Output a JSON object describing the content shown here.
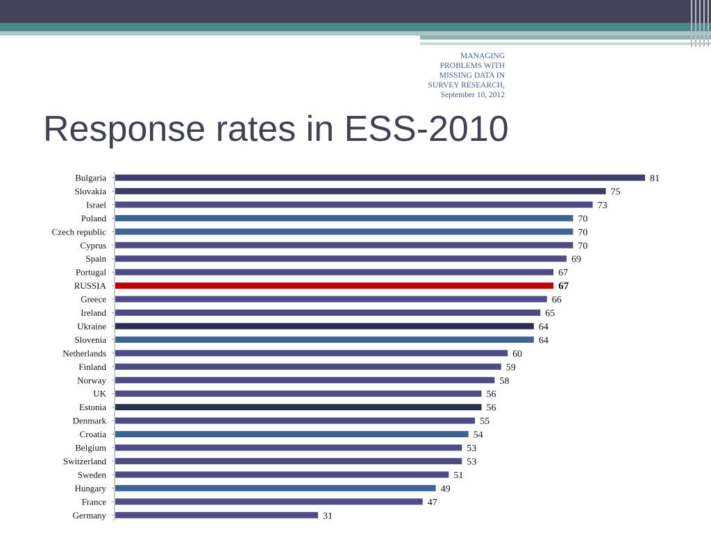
{
  "header": {
    "subtitle_lines": [
      "MANAGING",
      "PROBLEMS WITH",
      "MISSING DATA IN",
      "SURVEY RESEARCH,",
      "September 10, 2012"
    ]
  },
  "slide": {
    "title": "Response rates in ESS-2010"
  },
  "colors": {
    "bar_default": "#4e4b85",
    "bar_dark": "#2f3a5c",
    "bar_blue": "#3c6495",
    "bar_highlight": "#c00000"
  },
  "chart_data": {
    "type": "bar",
    "orientation": "horizontal",
    "categories": [
      "Bulgaria",
      "Slovakia",
      "Israel",
      "Poland",
      "Czech republic",
      "Cyprus",
      "Spain",
      "Portugal",
      "RUSSIA",
      "Greece",
      "Ireland",
      "Ukraine",
      "Slovenia",
      "Netherlands",
      "Finland",
      "Norway",
      "UK",
      "Estonia",
      "Denmark",
      "Croatia",
      "Belgium",
      "Switzerland",
      "Sweden",
      "Hungary",
      "France",
      "Germany"
    ],
    "values": [
      81,
      75,
      73,
      70,
      70,
      70,
      69,
      67,
      67,
      66,
      65,
      64,
      64,
      60,
      59,
      58,
      56,
      56,
      55,
      54,
      53,
      53,
      51,
      49,
      47,
      31
    ],
    "value_labels": [
      "81",
      "75",
      "73",
      "70",
      "70",
      "70",
      "69",
      "67",
      "67",
      "66",
      "65",
      "64",
      "64",
      "60",
      "59",
      "58",
      "56",
      "56",
      "55",
      "54",
      "53",
      "53",
      "51",
      "49",
      "47",
      "31"
    ],
    "bar_colors": [
      "#3e3d6b",
      "#3e3d6b",
      "#4e4b85",
      "#3c6495",
      "#3c6495",
      "#4e4b85",
      "#4e4b85",
      "#4e4b85",
      "#c00000",
      "#4e4b85",
      "#4e4b85",
      "#2b2e4e",
      "#3c6495",
      "#4e4b85",
      "#4e4b85",
      "#4e4b85",
      "#4e4b85",
      "#2b2e4e",
      "#4e4b85",
      "#3c6495",
      "#4e4b85",
      "#4e4b85",
      "#4e4b85",
      "#3c6495",
      "#4e4b85",
      "#4e4b85"
    ],
    "highlight": "RUSSIA",
    "xlim": [
      0,
      90
    ],
    "grid": false,
    "legend": "none"
  }
}
